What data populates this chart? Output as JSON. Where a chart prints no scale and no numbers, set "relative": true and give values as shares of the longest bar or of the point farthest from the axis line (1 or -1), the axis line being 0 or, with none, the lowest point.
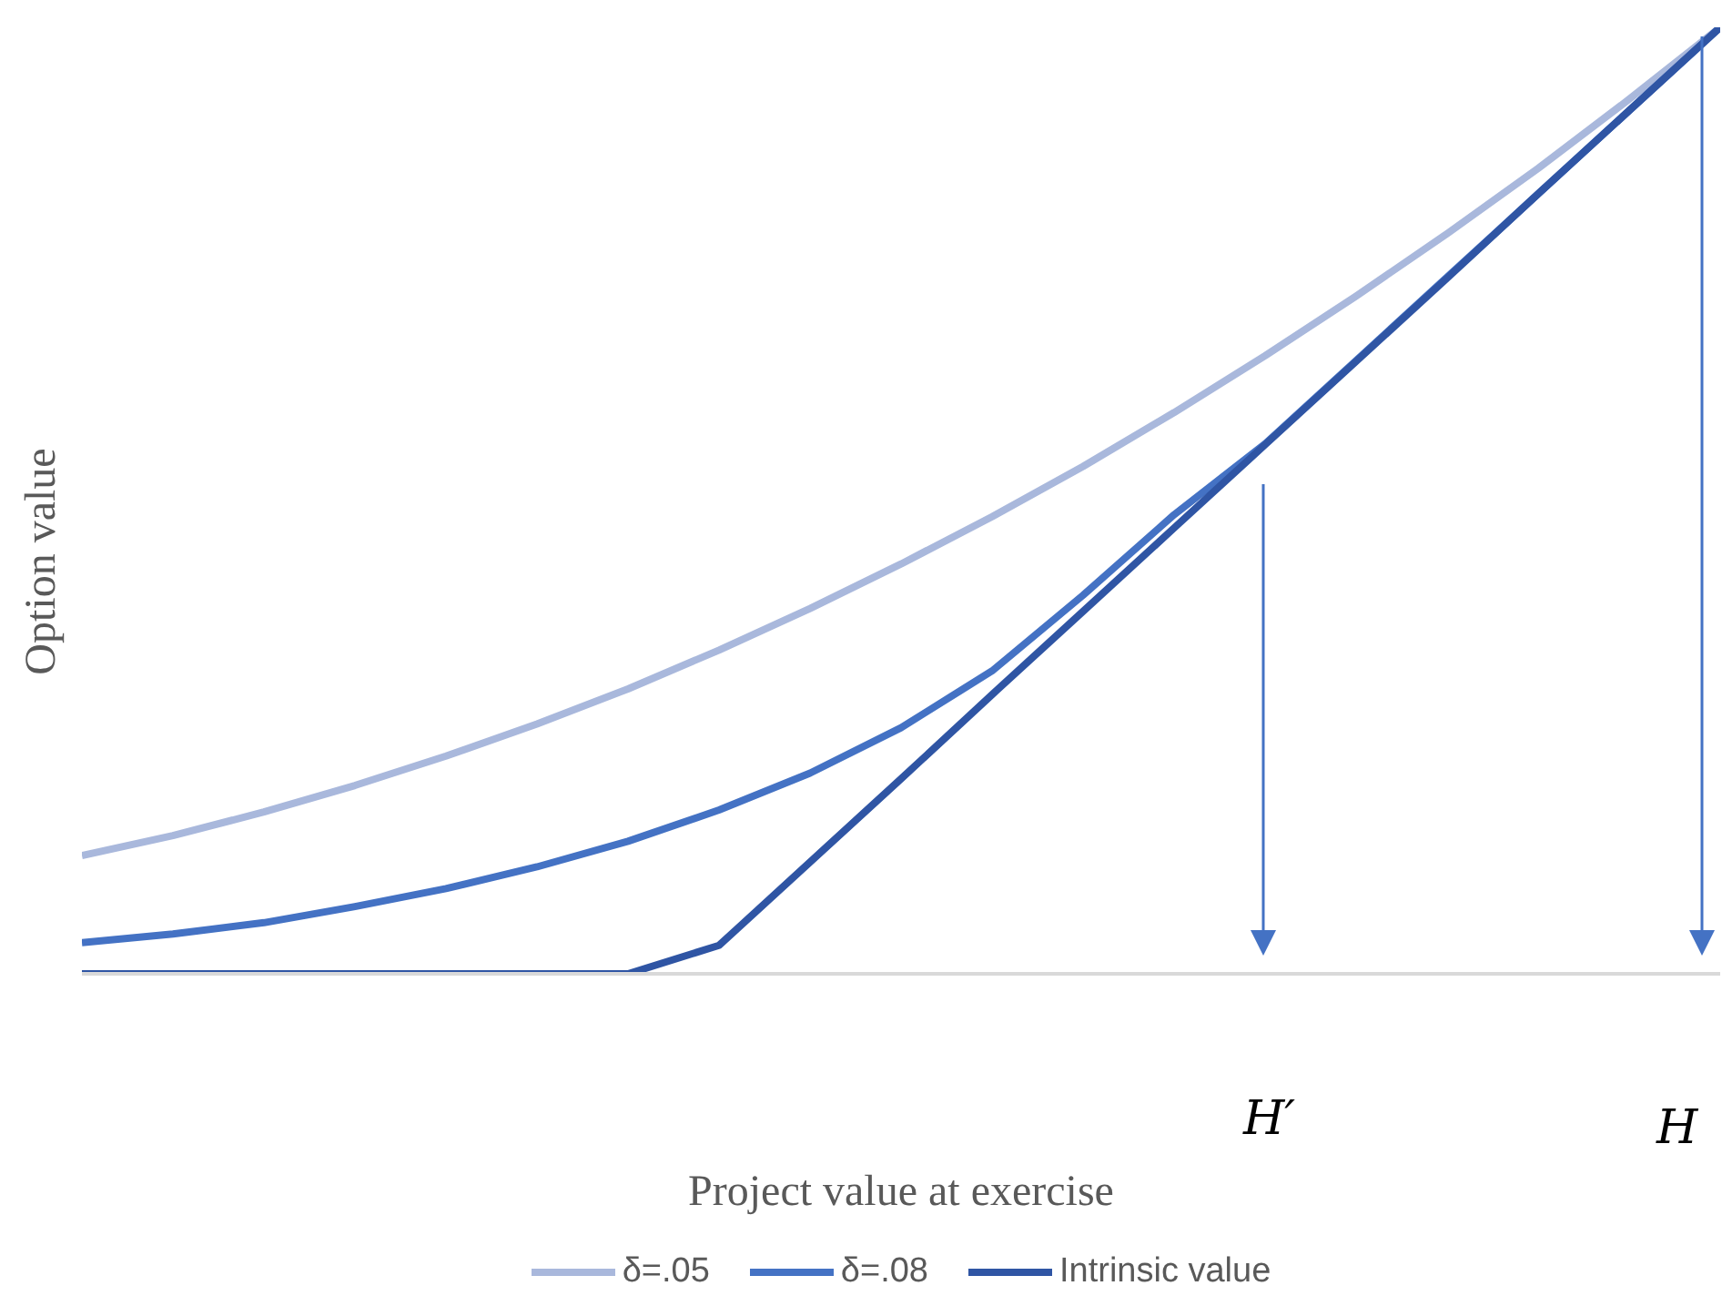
{
  "chart_data": {
    "type": "line",
    "relative": true,
    "xlabel": "Project value at exercise",
    "ylabel": "Option value",
    "categories": [
      null,
      null,
      null,
      null,
      null,
      null,
      null,
      null,
      null,
      null,
      null,
      null,
      null,
      null,
      null,
      null,
      null,
      null,
      null
    ],
    "series": [
      {
        "name": "δ=.05",
        "color": "#a9b8dc",
        "values": [
          0.125,
          0.146,
          0.171,
          0.199,
          0.23,
          0.264,
          0.301,
          0.342,
          0.386,
          0.433,
          0.483,
          0.536,
          0.593,
          0.653,
          0.716,
          0.782,
          0.851,
          0.924,
          1.0
        ]
      },
      {
        "name": "δ=.08",
        "color": "#4472c4",
        "values": [
          0.033,
          0.042,
          0.054,
          0.071,
          0.09,
          0.113,
          0.14,
          0.173,
          0.212,
          0.26,
          0.32,
          0.4,
          0.485,
          0.56,
          0.648,
          0.736,
          0.824,
          0.912,
          1.0
        ]
      },
      {
        "name": "Intrinsic value",
        "color": "#2f55a4",
        "values": [
          0,
          0,
          0,
          0,
          0,
          0,
          0,
          0.03,
          0.118,
          0.206,
          0.295,
          0.383,
          0.471,
          0.559,
          0.647,
          0.735,
          0.824,
          0.912,
          1.0
        ]
      }
    ],
    "annotations": [
      "H′",
      "H"
    ],
    "legend": "bottom",
    "grid": false,
    "marker": "none",
    "line_style": "solid"
  }
}
